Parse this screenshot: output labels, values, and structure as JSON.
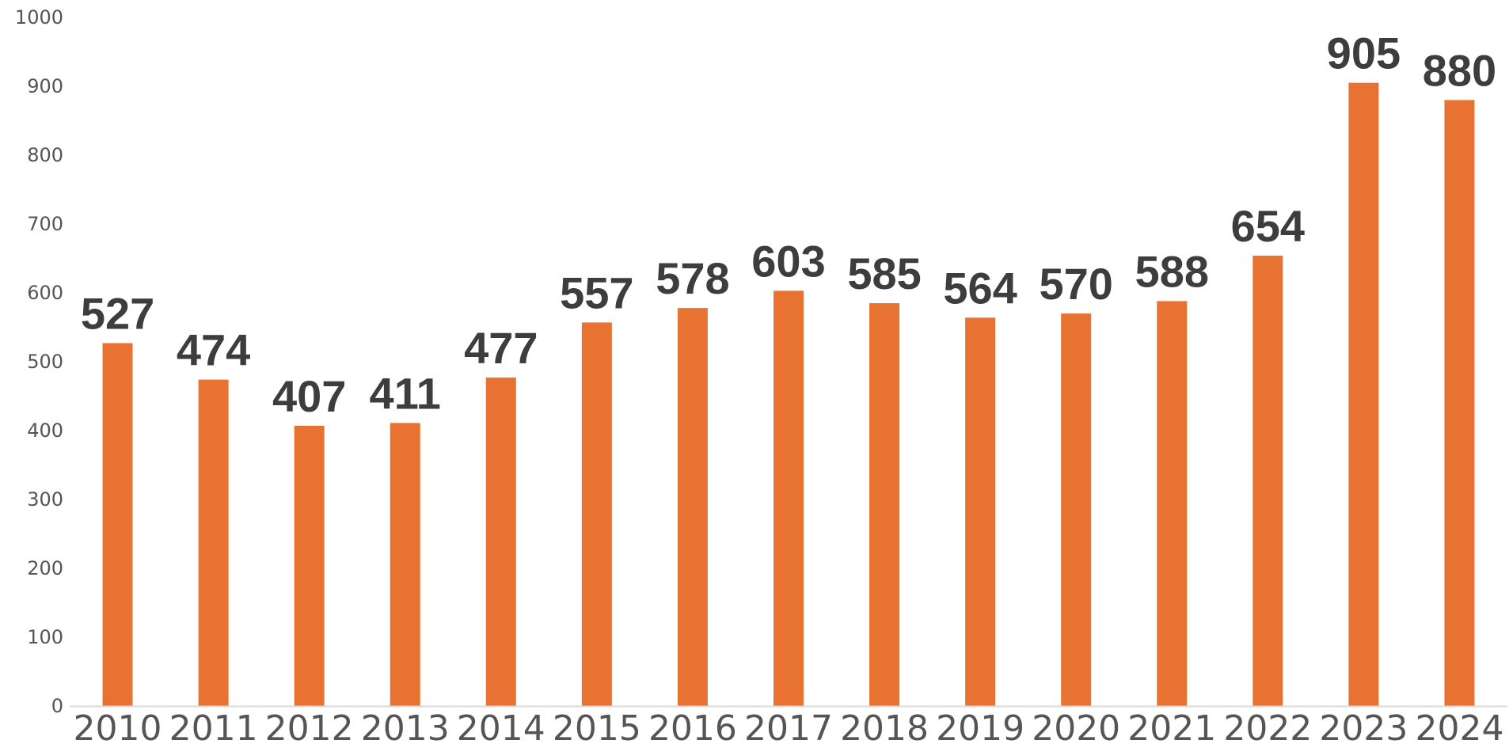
{
  "chart_data": {
    "type": "bar",
    "title": "",
    "xlabel": "",
    "ylabel": "",
    "categories": [
      "2010",
      "2011",
      "2012",
      "2013",
      "2014",
      "2015",
      "2016",
      "2017",
      "2018",
      "2019",
      "2020",
      "2021",
      "2022",
      "2023",
      "2024"
    ],
    "values": [
      527,
      474,
      407,
      411,
      477,
      557,
      578,
      603,
      585,
      564,
      570,
      588,
      654,
      905,
      880
    ],
    "ylim": [
      0,
      1000
    ],
    "yticks": [
      0,
      100,
      200,
      300,
      400,
      500,
      600,
      700,
      800,
      900,
      1000
    ],
    "grid": false,
    "legend": "none",
    "bar_color": "#E87232",
    "label_color": "#3d3d3d",
    "axis_color": "#d9d9d9"
  }
}
